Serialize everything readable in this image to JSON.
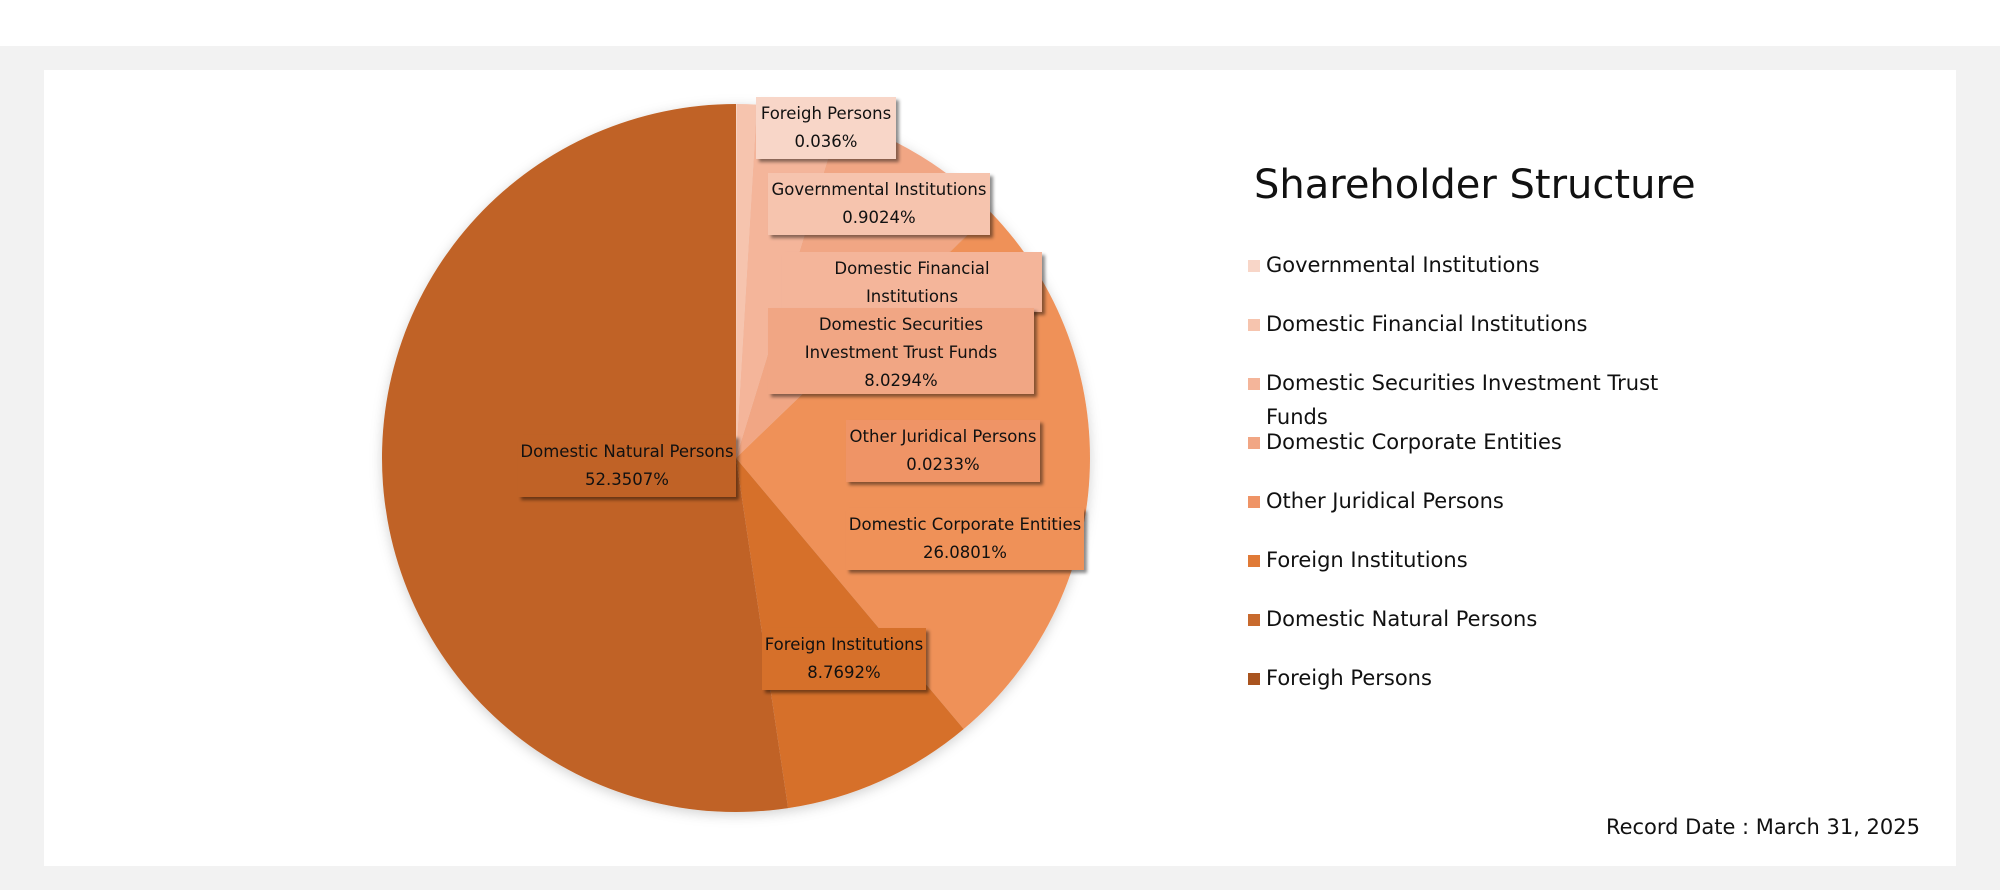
{
  "chart_data": {
    "type": "pie",
    "title": "Shareholder Structure",
    "slices": [
      {
        "name": "Foreigh Persons",
        "value": 0.036,
        "label": "0.036%",
        "color": "#f8d6c8"
      },
      {
        "name": "Governmental Institutions",
        "value": 0.9024,
        "label": "0.9024%",
        "color": "#f6c4ae"
      },
      {
        "name": "Domestic Financial Institutions",
        "value": 3.8088,
        "label": "3.8088%",
        "color": "#f4b59a"
      },
      {
        "name": "Domestic Securities Investment Trust Funds",
        "value": 8.0294,
        "label": "8.0294%",
        "color": "#f1a684"
      },
      {
        "name": "Other Juridical Persons",
        "value": 0.0233,
        "label": "0.0233%",
        "color": "#ef9466"
      },
      {
        "name": "Domestic Corporate Entities",
        "value": 26.0801,
        "label": "26.0801%",
        "color": "#ef9159"
      },
      {
        "name": "Foreign Institutions",
        "value": 8.7692,
        "label": "8.7692%",
        "color": "#d6702c"
      },
      {
        "name": "Domestic Natural Persons",
        "value": 52.3507,
        "label": "52.3507%",
        "color": "#c06225"
      }
    ],
    "legend": {
      "position": "right",
      "items": [
        {
          "label": "Governmental Institutions",
          "color": "#f8d6c8"
        },
        {
          "label": "Domestic Financial Institutions",
          "color": "#f6c4ae"
        },
        {
          "label": "Domestic Securities Investment Trust Funds",
          "color": "#f4b59a"
        },
        {
          "label": "Domestic Corporate Entities",
          "color": "#f1a684"
        },
        {
          "label": "Other Juridical Persons",
          "color": "#ef9466"
        },
        {
          "label": "Foreign Institutions",
          "color": "#e07a37"
        },
        {
          "label": "Domestic Natural Persons",
          "color": "#c86a2e"
        },
        {
          "label": "Foreigh Persons",
          "color": "#a9541f"
        }
      ]
    }
  },
  "record_date": "Record Date : March 31, 2025"
}
